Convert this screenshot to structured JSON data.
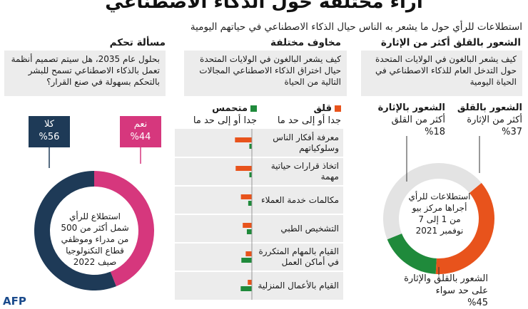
{
  "header": {
    "title": "آراء مختلفة حول الذكاء الاصطناعي",
    "subtitle": "استطلاعات للرأي حول ما يشعر به الناس حيال الذكاء الاصطناعي في حياتهم اليومية"
  },
  "sections": {
    "right": {
      "heading": "الشعور بالقلق أكثر من الإثارة",
      "question": "كيف يشعر البالغون في الولايات المتحدة حول التدخل العام للذكاء الاصطناعي في الحياة اليومية",
      "concern_label_1": "الشعور بالقلق",
      "concern_label_2": "أكثر من الإثارة",
      "concern_pct": "%37",
      "excite_label_1": "الشعور بالإثارة",
      "excite_label_2": "أكثر من القلق",
      "excite_pct": "%18",
      "both_label_1": "الشعور بالقلق والإثارة",
      "both_label_2": "على حد سواء",
      "both_pct": "%45",
      "center_1": "استطلاعات للرأي",
      "center_2": "أجراها مركز بيو",
      "center_3": "من 1 إلى 7",
      "center_4": "نوفمبر 2021"
    },
    "middle": {
      "heading": "مخاوف مختلفة",
      "question": "كيف يشعر البالغون في الولايات المتحدة حيال اختراق الذكاء الاصطناعي المجالات التالية من الحياة",
      "legend_worry_1": "قلق",
      "legend_worry_2": "جدا أو إلى حد ما",
      "legend_excite_1": "متحمس",
      "legend_excite_2": "جدا أو إلى حد ما"
    },
    "left": {
      "heading": "مسألة تحكم",
      "question": "بحلول عام 2035، هل سيتم تصميم أنظمة تعمل بالذكاء الاصطناعي تسمح للبشر بالتحكم بسهولة في صنع القرار؟",
      "yes_label": "نعم",
      "yes_pct": "%44",
      "no_label": "كلا",
      "no_pct": "%56",
      "center_1": "استطلاع للرأي",
      "center_2": "شمل أكثر من 500",
      "center_3": "من مدراء وموظفي",
      "center_4": "قطاع التكنولوجيا",
      "center_5": "صيف 2022"
    }
  },
  "footer": {
    "logo": "AFP"
  },
  "colors": {
    "orange": "#e8531c",
    "green": "#1f8a3b",
    "gray": "#e3e3e3",
    "pink": "#d6377d",
    "navy": "#1e3a57"
  },
  "chart_data": [
    {
      "type": "pie",
      "categories": [
        "الشعور بالقلق أكثر من الإثارة",
        "الشعور بالإثارة أكثر من القلق",
        "الشعور بالقلق والإثارة على حد سواء"
      ],
      "values": [
        37,
        18,
        45
      ]
    },
    {
      "type": "bar",
      "categories": [
        "معرفة أفكار الناس وسلوكياتهم",
        "اتخاذ قرارات حياتية مهمة",
        "مكالمات خدمة العملاء",
        "التشخيص الطبي",
        "القيام بالمهام المتكررة في أماكن العمل",
        "القيام بالأعمال المنزلية"
      ],
      "series": [
        {
          "name": "قلق جدا أو إلى حد ما",
          "values": [
            74,
            71,
            48,
            40,
            27,
            18
          ]
        },
        {
          "name": "متحمس جدا أو إلى حد ما",
          "values": [
            11,
            11,
            16,
            22,
            46,
            49
          ]
        }
      ]
    },
    {
      "type": "pie",
      "categories": [
        "نعم",
        "كلا"
      ],
      "values": [
        44,
        56
      ]
    }
  ]
}
